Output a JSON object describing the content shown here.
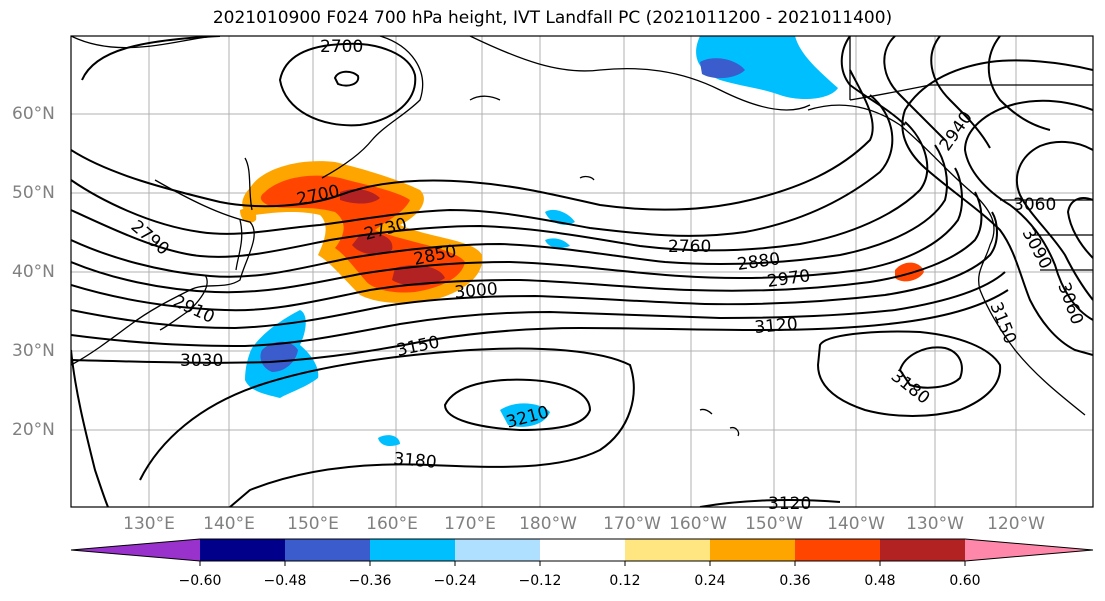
{
  "title": "2021010900 F024 700 hPa height, IVT Landfall PC (2021011200 - 2021011400)",
  "map": {
    "lat_labels": [
      "60°N",
      "50°N",
      "40°N",
      "30°N",
      "20°N"
    ],
    "lon_labels": [
      "130°E",
      "140°E",
      "150°E",
      "160°E",
      "170°E",
      "180°W",
      "170°W",
      "160°W",
      "150°W",
      "140°W",
      "130°W",
      "120°W"
    ],
    "contour_labels": [
      "2700",
      "2700",
      "2730",
      "2790",
      "2850",
      "2910",
      "3000",
      "3030",
      "3150",
      "2760",
      "2880",
      "2970",
      "3120",
      "3210",
      "3180",
      "3180",
      "3120",
      "2940",
      "3060",
      "3090",
      "3060",
      "3150"
    ]
  },
  "colorbar": {
    "tick_labels": [
      "−0.60",
      "−0.48",
      "−0.36",
      "−0.24",
      "−0.12",
      "0.12",
      "0.24",
      "0.36",
      "0.48",
      "0.60"
    ],
    "colors": [
      "#9932cc",
      "#00008b",
      "#3a5ccc",
      "#00bfff",
      "#b0e0ff",
      "#ffffff",
      "#ffe680",
      "#ffa500",
      "#ff4500",
      "#b22222",
      "#ff88aa"
    ]
  }
}
